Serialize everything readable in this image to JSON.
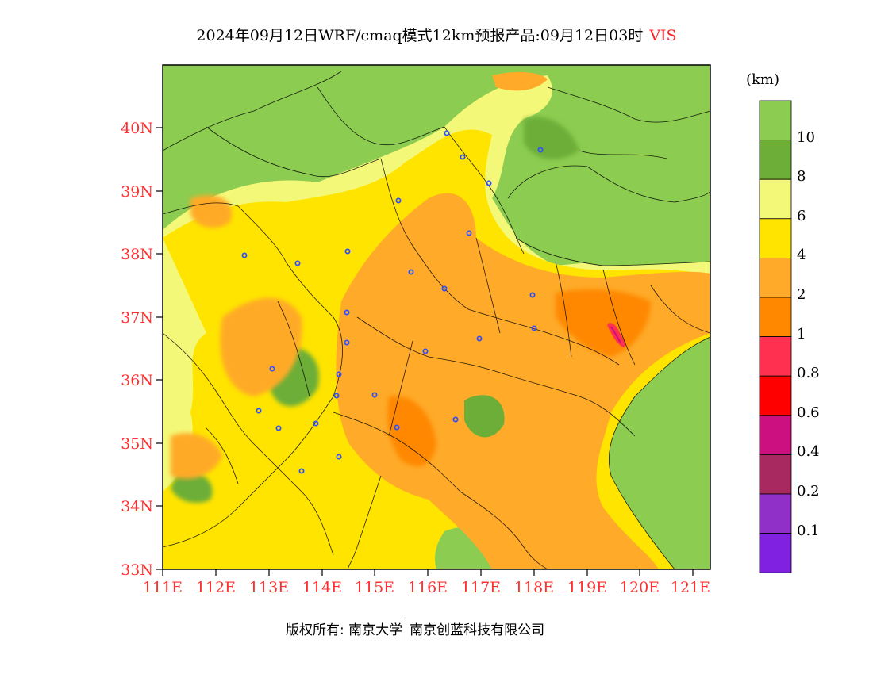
{
  "title": {
    "main": "2024年09月12日WRF/cmaq模式12km预报产品:09月12日03时",
    "variable": "VIS"
  },
  "axes": {
    "lat_labels": [
      "33N",
      "34N",
      "35N",
      "36N",
      "37N",
      "38N",
      "39N",
      "40N"
    ],
    "lon_labels": [
      "111E",
      "112E",
      "113E",
      "114E",
      "115E",
      "116E",
      "117E",
      "118E",
      "119E",
      "120E",
      "121E"
    ]
  },
  "colorbar": {
    "unit": "(km)",
    "labels": [
      "10",
      "8",
      "6",
      "4",
      "2",
      "1",
      "0.8",
      "0.6",
      "0.4",
      "0.2",
      "0.1"
    ],
    "colors": [
      "#8ccc50",
      "#6cae38",
      "#f4f878",
      "#ffe400",
      "#ffaa28",
      "#ff8800",
      "#ff3050",
      "#ff0000",
      "#cc1080",
      "#a82860",
      "#9030c8",
      "#8020e0"
    ]
  },
  "footer": {
    "left": "版权所有: 南京大学",
    "right": "南京创蓝科技有限公司"
  }
}
